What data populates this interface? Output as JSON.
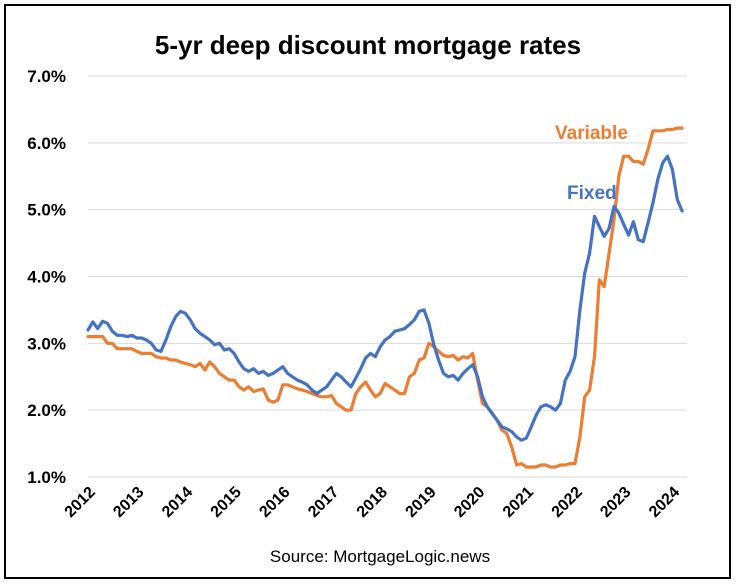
{
  "chart_data": {
    "type": "line",
    "title": "5-yr deep discount mortgage rates",
    "source": "Source: MortgageLogic.news",
    "xlabel": "",
    "ylabel": "",
    "ylim": [
      1.0,
      7.0
    ],
    "xlim": [
      2012,
      2024.3
    ],
    "yticks": [
      {
        "value": 1.0,
        "label": "1.0%"
      },
      {
        "value": 2.0,
        "label": "2.0%"
      },
      {
        "value": 3.0,
        "label": "3.0%"
      },
      {
        "value": 4.0,
        "label": "4.0%"
      },
      {
        "value": 5.0,
        "label": "5.0%"
      },
      {
        "value": 6.0,
        "label": "6.0%"
      },
      {
        "value": 7.0,
        "label": "7.0%"
      }
    ],
    "xticks": [
      {
        "value": 2012,
        "label": "2012"
      },
      {
        "value": 2013,
        "label": "2013"
      },
      {
        "value": 2014,
        "label": "2014"
      },
      {
        "value": 2015,
        "label": "2015"
      },
      {
        "value": 2016,
        "label": "2016"
      },
      {
        "value": 2017,
        "label": "2017"
      },
      {
        "value": 2018,
        "label": "2018"
      },
      {
        "value": 2019,
        "label": "2019"
      },
      {
        "value": 2020,
        "label": "2020"
      },
      {
        "value": 2021,
        "label": "2021"
      },
      {
        "value": 2022,
        "label": "2022"
      },
      {
        "value": 2023,
        "label": "2023"
      },
      {
        "value": 2024,
        "label": "2024"
      }
    ],
    "grid": true,
    "series": [
      {
        "name": "Fixed",
        "color": "#4472C4",
        "x": [
          2012.0,
          2012.1,
          2012.2,
          2012.3,
          2012.4,
          2012.5,
          2012.6,
          2012.7,
          2012.8,
          2012.9,
          2013.0,
          2013.1,
          2013.2,
          2013.3,
          2013.4,
          2013.5,
          2013.6,
          2013.7,
          2013.8,
          2013.9,
          2014.0,
          2014.1,
          2014.2,
          2014.3,
          2014.4,
          2014.5,
          2014.6,
          2014.7,
          2014.8,
          2014.9,
          2015.0,
          2015.1,
          2015.2,
          2015.3,
          2015.4,
          2015.5,
          2015.6,
          2015.7,
          2015.8,
          2015.9,
          2016.0,
          2016.1,
          2016.2,
          2016.3,
          2016.4,
          2016.5,
          2016.6,
          2016.7,
          2016.8,
          2016.9,
          2017.0,
          2017.1,
          2017.2,
          2017.3,
          2017.4,
          2017.5,
          2017.6,
          2017.7,
          2017.8,
          2017.9,
          2018.0,
          2018.1,
          2018.2,
          2018.3,
          2018.4,
          2018.5,
          2018.6,
          2018.7,
          2018.8,
          2018.9,
          2019.0,
          2019.1,
          2019.2,
          2019.3,
          2019.4,
          2019.5,
          2019.6,
          2019.7,
          2019.8,
          2019.9,
          2020.0,
          2020.1,
          2020.2,
          2020.3,
          2020.4,
          2020.5,
          2020.6,
          2020.7,
          2020.8,
          2020.9,
          2021.0,
          2021.1,
          2021.2,
          2021.3,
          2021.4,
          2021.5,
          2021.6,
          2021.7,
          2021.8,
          2021.9,
          2022.0,
          2022.1,
          2022.2,
          2022.3,
          2022.4,
          2022.5,
          2022.6,
          2022.7,
          2022.8,
          2022.9,
          2023.0,
          2023.1,
          2023.2,
          2023.3,
          2023.4,
          2023.5,
          2023.6,
          2023.7,
          2023.8,
          2023.9,
          2024.0,
          2024.1,
          2024.2
        ],
        "values": [
          3.2,
          3.32,
          3.22,
          3.33,
          3.3,
          3.18,
          3.12,
          3.12,
          3.1,
          3.12,
          3.08,
          3.08,
          3.05,
          3.0,
          2.9,
          2.88,
          3.05,
          3.25,
          3.4,
          3.48,
          3.45,
          3.35,
          3.22,
          3.15,
          3.1,
          3.05,
          2.98,
          3.0,
          2.9,
          2.92,
          2.85,
          2.72,
          2.62,
          2.58,
          2.62,
          2.55,
          2.58,
          2.52,
          2.55,
          2.6,
          2.65,
          2.55,
          2.5,
          2.45,
          2.42,
          2.38,
          2.3,
          2.25,
          2.3,
          2.35,
          2.45,
          2.55,
          2.5,
          2.42,
          2.35,
          2.48,
          2.62,
          2.78,
          2.85,
          2.8,
          2.95,
          3.05,
          3.1,
          3.18,
          3.2,
          3.22,
          3.28,
          3.35,
          3.48,
          3.5,
          3.3,
          2.98,
          2.75,
          2.55,
          2.5,
          2.52,
          2.45,
          2.55,
          2.62,
          2.68,
          2.5,
          2.2,
          2.05,
          1.95,
          1.85,
          1.75,
          1.72,
          1.68,
          1.6,
          1.55,
          1.58,
          1.75,
          1.92,
          2.05,
          2.08,
          2.05,
          2.0,
          2.1,
          2.45,
          2.58,
          2.8,
          3.5,
          4.05,
          4.35,
          4.9,
          4.75,
          4.6,
          4.72,
          5.05,
          4.95,
          4.78,
          4.62,
          4.82,
          4.55,
          4.52,
          4.8,
          5.1,
          5.45,
          5.7,
          5.8,
          5.6,
          5.15,
          4.98
        ]
      },
      {
        "name": "Variable",
        "color": "#ED7D31",
        "x": [
          2012.0,
          2012.1,
          2012.2,
          2012.3,
          2012.4,
          2012.5,
          2012.6,
          2012.7,
          2012.8,
          2012.9,
          2013.0,
          2013.1,
          2013.2,
          2013.3,
          2013.4,
          2013.5,
          2013.6,
          2013.7,
          2013.8,
          2013.9,
          2014.0,
          2014.1,
          2014.2,
          2014.3,
          2014.4,
          2014.5,
          2014.6,
          2014.7,
          2014.8,
          2014.9,
          2015.0,
          2015.1,
          2015.2,
          2015.3,
          2015.4,
          2015.5,
          2015.6,
          2015.7,
          2015.8,
          2015.9,
          2016.0,
          2016.1,
          2016.2,
          2016.3,
          2016.4,
          2016.5,
          2016.6,
          2016.7,
          2016.8,
          2016.9,
          2017.0,
          2017.1,
          2017.2,
          2017.3,
          2017.4,
          2017.5,
          2017.6,
          2017.7,
          2017.8,
          2017.9,
          2018.0,
          2018.1,
          2018.2,
          2018.3,
          2018.4,
          2018.5,
          2018.6,
          2018.7,
          2018.8,
          2018.9,
          2019.0,
          2019.1,
          2019.2,
          2019.3,
          2019.4,
          2019.5,
          2019.6,
          2019.7,
          2019.8,
          2019.9,
          2020.0,
          2020.1,
          2020.2,
          2020.3,
          2020.4,
          2020.5,
          2020.6,
          2020.7,
          2020.8,
          2020.9,
          2021.0,
          2021.1,
          2021.2,
          2021.3,
          2021.4,
          2021.5,
          2021.6,
          2021.7,
          2021.8,
          2021.9,
          2022.0,
          2022.1,
          2022.2,
          2022.3,
          2022.4,
          2022.5,
          2022.6,
          2022.7,
          2022.8,
          2022.9,
          2023.0,
          2023.1,
          2023.2,
          2023.3,
          2023.4,
          2023.5,
          2023.6,
          2023.7,
          2023.8,
          2023.9,
          2024.0,
          2024.1,
          2024.2
        ],
        "values": [
          3.1,
          3.1,
          3.1,
          3.1,
          3.0,
          3.0,
          2.92,
          2.92,
          2.92,
          2.92,
          2.88,
          2.85,
          2.85,
          2.85,
          2.8,
          2.78,
          2.78,
          2.75,
          2.75,
          2.72,
          2.7,
          2.68,
          2.65,
          2.7,
          2.6,
          2.72,
          2.65,
          2.55,
          2.5,
          2.45,
          2.45,
          2.35,
          2.3,
          2.35,
          2.28,
          2.3,
          2.32,
          2.15,
          2.12,
          2.15,
          2.38,
          2.38,
          2.35,
          2.32,
          2.3,
          2.28,
          2.25,
          2.22,
          2.2,
          2.2,
          2.22,
          2.1,
          2.05,
          2.0,
          2.0,
          2.25,
          2.35,
          2.42,
          2.3,
          2.2,
          2.25,
          2.4,
          2.35,
          2.3,
          2.25,
          2.25,
          2.5,
          2.55,
          2.75,
          2.78,
          3.0,
          2.95,
          2.88,
          2.82,
          2.8,
          2.82,
          2.75,
          2.8,
          2.78,
          2.85,
          2.45,
          2.1,
          2.05,
          1.95,
          1.85,
          1.7,
          1.65,
          1.45,
          1.18,
          1.2,
          1.15,
          1.15,
          1.15,
          1.18,
          1.18,
          1.15,
          1.15,
          1.18,
          1.18,
          1.2,
          1.2,
          1.6,
          2.2,
          2.3,
          2.8,
          3.95,
          3.85,
          4.35,
          4.85,
          5.5,
          5.8,
          5.8,
          5.72,
          5.72,
          5.68,
          5.9,
          6.18,
          6.18,
          6.18,
          6.2,
          6.2,
          6.22,
          6.22
        ]
      }
    ]
  }
}
